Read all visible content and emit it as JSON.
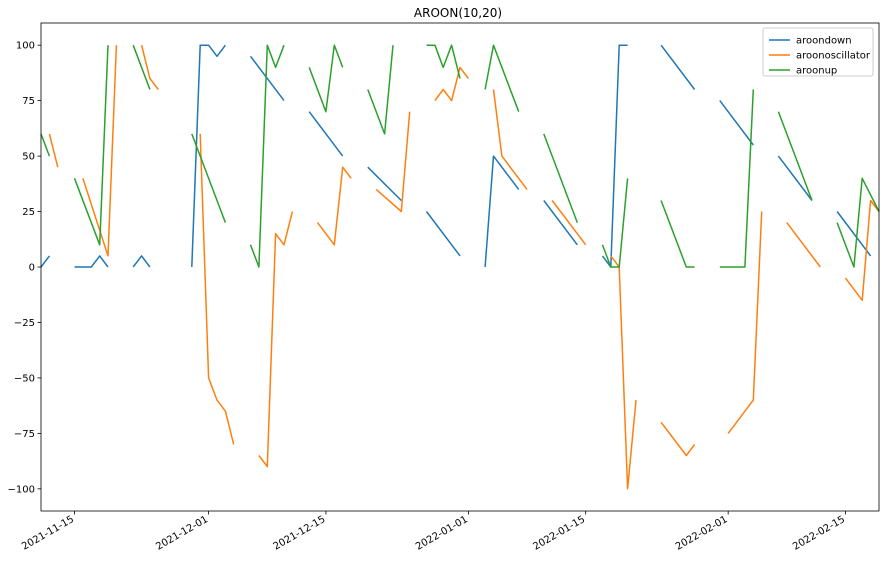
{
  "chart_data": {
    "type": "line",
    "title": "AROON(10,20)",
    "xlabel": "",
    "ylabel": "",
    "xlim": [
      "2021-11-11",
      "2022-02-19"
    ],
    "ylim": [
      -110,
      110
    ],
    "yticks": [
      100,
      75,
      50,
      25,
      0,
      -25,
      -50,
      -75,
      -100
    ],
    "ytick_labels": [
      "100",
      "75",
      "50",
      "25",
      "0",
      "−25",
      "−50",
      "−75",
      "−100"
    ],
    "xticks": [
      "2021-11-15",
      "2021-12-01",
      "2021-12-15",
      "2022-01-01",
      "2022-01-15",
      "2022-02-01",
      "2022-02-15"
    ],
    "xtick_labels": [
      "2021-11-15",
      "2021-12-01",
      "2021-12-15",
      "2022-01-01",
      "2022-01-15",
      "2022-02-01",
      "2022-02-15"
    ],
    "grid": false,
    "legend_position": "top-right",
    "series": [
      {
        "name": "aroondown",
        "color": "#1f77b4",
        "segments": [
          [
            [
              "2021-11-11",
              0
            ],
            [
              "2021-11-12",
              5
            ]
          ],
          [
            [
              "2021-11-15",
              0
            ],
            [
              "2021-11-17",
              0
            ],
            [
              "2021-11-18",
              5
            ],
            [
              "2021-11-19",
              0
            ]
          ],
          [
            [
              "2021-11-22",
              0
            ],
            [
              "2021-11-23",
              5
            ],
            [
              "2021-11-24",
              0
            ]
          ],
          [
            [
              "2021-11-29",
              0
            ],
            [
              "2021-11-30",
              100
            ],
            [
              "2021-12-01",
              100
            ],
            [
              "2021-12-02",
              95
            ],
            [
              "2021-12-03",
              100
            ]
          ],
          [
            [
              "2021-12-06",
              95
            ],
            [
              "2021-12-10",
              75
            ]
          ],
          [
            [
              "2021-12-13",
              70
            ],
            [
              "2021-12-17",
              50
            ]
          ],
          [
            [
              "2021-12-20",
              45
            ],
            [
              "2021-12-24",
              30
            ]
          ],
          [
            [
              "2021-12-27",
              25
            ],
            [
              "2021-12-31",
              5
            ]
          ],
          [
            [
              "2022-01-03",
              0
            ],
            [
              "2022-01-04",
              50
            ],
            [
              "2022-01-07",
              35
            ]
          ],
          [
            [
              "2022-01-10",
              30
            ],
            [
              "2022-01-14",
              10
            ]
          ],
          [
            [
              "2022-01-17",
              5
            ],
            [
              "2022-01-18",
              0
            ],
            [
              "2022-01-19",
              100
            ],
            [
              "2022-01-20",
              100
            ]
          ],
          [
            [
              "2022-01-24",
              100
            ],
            [
              "2022-01-28",
              80
            ]
          ],
          [
            [
              "2022-01-31",
              75
            ],
            [
              "2022-02-04",
              55
            ]
          ],
          [
            [
              "2022-02-07",
              50
            ],
            [
              "2022-02-11",
              30
            ]
          ],
          [
            [
              "2022-02-14",
              25
            ],
            [
              "2022-02-18",
              5
            ]
          ]
        ]
      },
      {
        "name": "aroonoscillator",
        "color": "#ff7f0e",
        "segments": [
          [
            [
              "2021-11-12",
              60
            ],
            [
              "2021-11-13",
              45
            ]
          ],
          [
            [
              "2021-11-16",
              40
            ],
            [
              "2021-11-19",
              5
            ],
            [
              "2021-11-20",
              100
            ]
          ],
          [
            [
              "2021-11-23",
              100
            ],
            [
              "2021-11-24",
              85
            ],
            [
              "2021-11-25",
              80
            ]
          ],
          [
            [
              "2021-11-30",
              60
            ],
            [
              "2021-12-01",
              -50
            ],
            [
              "2021-12-02",
              -60
            ],
            [
              "2021-12-03",
              -65
            ],
            [
              "2021-12-04",
              -80
            ]
          ],
          [
            [
              "2021-12-07",
              -85
            ],
            [
              "2021-12-08",
              -90
            ],
            [
              "2021-12-09",
              15
            ],
            [
              "2021-12-10",
              10
            ],
            [
              "2021-12-11",
              25
            ]
          ],
          [
            [
              "2021-12-14",
              20
            ],
            [
              "2021-12-16",
              10
            ],
            [
              "2021-12-17",
              45
            ],
            [
              "2021-12-18",
              40
            ]
          ],
          [
            [
              "2021-12-21",
              35
            ],
            [
              "2021-12-24",
              25
            ],
            [
              "2021-12-25",
              70
            ]
          ],
          [
            [
              "2021-12-28",
              75
            ],
            [
              "2021-12-29",
              80
            ],
            [
              "2021-12-30",
              75
            ],
            [
              "2021-12-31",
              90
            ],
            [
              "2022-01-01",
              85
            ]
          ],
          [
            [
              "2022-01-04",
              80
            ],
            [
              "2022-01-05",
              50
            ],
            [
              "2022-01-08",
              35
            ]
          ],
          [
            [
              "2022-01-11",
              30
            ],
            [
              "2022-01-15",
              10
            ]
          ],
          [
            [
              "2022-01-18",
              5
            ],
            [
              "2022-01-19",
              0
            ],
            [
              "2022-01-20",
              -100
            ],
            [
              "2022-01-21",
              -60
            ]
          ],
          [
            [
              "2022-01-24",
              -70
            ],
            [
              "2022-01-27",
              -85
            ],
            [
              "2022-01-28",
              -80
            ]
          ],
          [
            [
              "2022-02-01",
              -75
            ],
            [
              "2022-02-04",
              -60
            ],
            [
              "2022-02-05",
              25
            ]
          ],
          [
            [
              "2022-02-08",
              20
            ],
            [
              "2022-02-12",
              0
            ]
          ],
          [
            [
              "2022-02-15",
              -5
            ],
            [
              "2022-02-17",
              -15
            ],
            [
              "2022-02-18",
              30
            ],
            [
              "2022-02-19",
              25
            ]
          ]
        ]
      },
      {
        "name": "aroonup",
        "color": "#2ca02c",
        "segments": [
          [
            [
              "2021-11-11",
              60
            ],
            [
              "2021-11-12",
              50
            ]
          ],
          [
            [
              "2021-11-15",
              40
            ],
            [
              "2021-11-18",
              10
            ],
            [
              "2021-11-19",
              100
            ]
          ],
          [
            [
              "2021-11-22",
              100
            ],
            [
              "2021-11-24",
              80
            ]
          ],
          [
            [
              "2021-11-29",
              60
            ],
            [
              "2021-12-03",
              20
            ]
          ],
          [
            [
              "2021-12-06",
              10
            ],
            [
              "2021-12-07",
              0
            ],
            [
              "2021-12-08",
              100
            ],
            [
              "2021-12-09",
              90
            ],
            [
              "2021-12-10",
              100
            ]
          ],
          [
            [
              "2021-12-13",
              90
            ],
            [
              "2021-12-15",
              70
            ],
            [
              "2021-12-16",
              100
            ],
            [
              "2021-12-17",
              90
            ]
          ],
          [
            [
              "2021-12-20",
              80
            ],
            [
              "2021-12-22",
              60
            ],
            [
              "2021-12-23",
              100
            ]
          ],
          [
            [
              "2021-12-27",
              100
            ],
            [
              "2021-12-28",
              100
            ],
            [
              "2021-12-29",
              90
            ],
            [
              "2021-12-30",
              100
            ],
            [
              "2021-12-31",
              85
            ]
          ],
          [
            [
              "2022-01-03",
              80
            ],
            [
              "2022-01-04",
              100
            ],
            [
              "2022-01-07",
              70
            ]
          ],
          [
            [
              "2022-01-10",
              60
            ],
            [
              "2022-01-14",
              20
            ]
          ],
          [
            [
              "2022-01-17",
              10
            ],
            [
              "2022-01-18",
              0
            ],
            [
              "2022-01-19",
              0
            ],
            [
              "2022-01-20",
              40
            ]
          ],
          [
            [
              "2022-01-24",
              30
            ],
            [
              "2022-01-27",
              0
            ],
            [
              "2022-01-28",
              0
            ]
          ],
          [
            [
              "2022-01-31",
              0
            ],
            [
              "2022-02-03",
              0
            ],
            [
              "2022-02-04",
              80
            ]
          ],
          [
            [
              "2022-02-07",
              70
            ],
            [
              "2022-02-11",
              30
            ]
          ],
          [
            [
              "2022-02-14",
              20
            ],
            [
              "2022-02-16",
              0
            ],
            [
              "2022-02-17",
              40
            ],
            [
              "2022-02-19",
              25
            ]
          ]
        ]
      }
    ]
  }
}
